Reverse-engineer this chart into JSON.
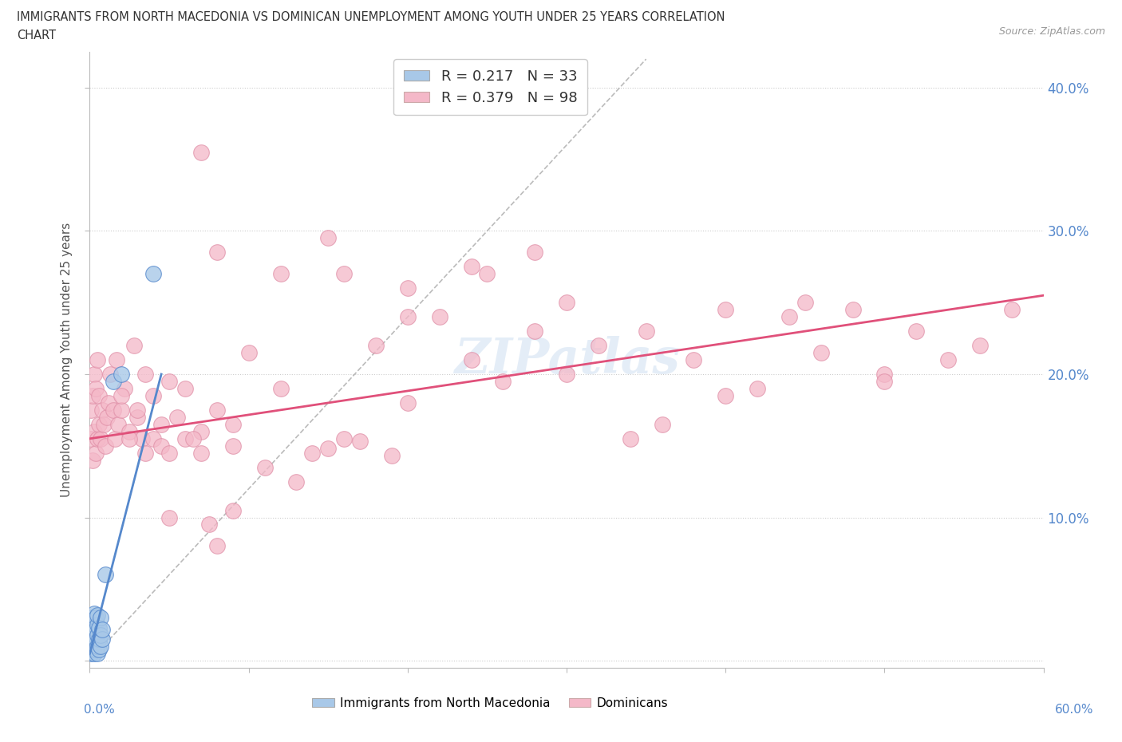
{
  "title_line1": "IMMIGRANTS FROM NORTH MACEDONIA VS DOMINICAN UNEMPLOYMENT AMONG YOUTH UNDER 25 YEARS CORRELATION",
  "title_line2": "CHART",
  "source": "Source: ZipAtlas.com",
  "ylabel": "Unemployment Among Youth under 25 years",
  "ytick_vals": [
    0.0,
    0.1,
    0.2,
    0.3,
    0.4
  ],
  "ytick_labels": [
    "",
    "10.0%",
    "20.0%",
    "30.0%",
    "40.0%"
  ],
  "xlim": [
    0.0,
    0.6
  ],
  "ylim": [
    -0.005,
    0.425
  ],
  "color_blue": "#a8c8e8",
  "color_blue_dark": "#5588cc",
  "color_pink": "#f4b8c8",
  "color_pink_line": "#e0507a",
  "color_blue_line": "#5588cc",
  "watermark": "ZIPatlas",
  "blue_x": [
    0.001,
    0.001,
    0.001,
    0.002,
    0.002,
    0.002,
    0.002,
    0.003,
    0.003,
    0.003,
    0.003,
    0.003,
    0.004,
    0.004,
    0.004,
    0.004,
    0.005,
    0.005,
    0.005,
    0.005,
    0.005,
    0.006,
    0.006,
    0.006,
    0.007,
    0.007,
    0.007,
    0.008,
    0.008,
    0.01,
    0.015,
    0.02,
    0.04
  ],
  "blue_y": [
    0.005,
    0.01,
    0.025,
    0.008,
    0.013,
    0.02,
    0.03,
    0.005,
    0.01,
    0.018,
    0.025,
    0.033,
    0.008,
    0.015,
    0.022,
    0.03,
    0.005,
    0.01,
    0.018,
    0.025,
    0.032,
    0.008,
    0.015,
    0.023,
    0.01,
    0.018,
    0.03,
    0.015,
    0.022,
    0.06,
    0.195,
    0.2,
    0.27
  ],
  "pink_x": [
    0.001,
    0.001,
    0.002,
    0.002,
    0.003,
    0.003,
    0.004,
    0.004,
    0.005,
    0.005,
    0.006,
    0.006,
    0.007,
    0.008,
    0.009,
    0.01,
    0.011,
    0.012,
    0.013,
    0.015,
    0.016,
    0.017,
    0.018,
    0.02,
    0.022,
    0.025,
    0.028,
    0.03,
    0.033,
    0.035,
    0.04,
    0.045,
    0.05,
    0.06,
    0.07,
    0.08,
    0.09,
    0.1,
    0.12,
    0.14,
    0.16,
    0.18,
    0.2,
    0.22,
    0.24,
    0.26,
    0.28,
    0.3,
    0.32,
    0.34,
    0.36,
    0.38,
    0.4,
    0.42,
    0.44,
    0.46,
    0.48,
    0.5,
    0.52,
    0.54,
    0.56,
    0.58,
    0.15,
    0.2,
    0.25,
    0.3,
    0.35,
    0.4,
    0.45,
    0.5,
    0.08,
    0.12,
    0.16,
    0.2,
    0.24,
    0.28,
    0.05,
    0.07,
    0.09,
    0.11,
    0.13,
    0.15,
    0.17,
    0.19,
    0.02,
    0.025,
    0.03,
    0.035,
    0.04,
    0.045,
    0.05,
    0.055,
    0.06,
    0.065,
    0.07,
    0.075,
    0.08,
    0.09
  ],
  "pink_y": [
    0.155,
    0.175,
    0.14,
    0.185,
    0.16,
    0.2,
    0.145,
    0.19,
    0.155,
    0.21,
    0.165,
    0.185,
    0.155,
    0.175,
    0.165,
    0.15,
    0.17,
    0.18,
    0.2,
    0.175,
    0.155,
    0.21,
    0.165,
    0.175,
    0.19,
    0.16,
    0.22,
    0.17,
    0.155,
    0.2,
    0.185,
    0.165,
    0.195,
    0.155,
    0.16,
    0.175,
    0.165,
    0.215,
    0.19,
    0.145,
    0.155,
    0.22,
    0.18,
    0.24,
    0.21,
    0.195,
    0.23,
    0.2,
    0.22,
    0.155,
    0.165,
    0.21,
    0.185,
    0.19,
    0.24,
    0.215,
    0.245,
    0.2,
    0.23,
    0.21,
    0.22,
    0.245,
    0.295,
    0.26,
    0.27,
    0.25,
    0.23,
    0.245,
    0.25,
    0.195,
    0.285,
    0.27,
    0.27,
    0.24,
    0.275,
    0.285,
    0.1,
    0.145,
    0.15,
    0.135,
    0.125,
    0.148,
    0.153,
    0.143,
    0.185,
    0.155,
    0.175,
    0.145,
    0.155,
    0.15,
    0.145,
    0.17,
    0.19,
    0.155,
    0.355,
    0.095,
    0.08,
    0.105
  ],
  "ref_line_x": [
    0.0,
    0.35
  ],
  "ref_line_y": [
    0.0,
    0.42
  ],
  "pink_line_x0": 0.0,
  "pink_line_x1": 0.6,
  "pink_line_y0": 0.155,
  "pink_line_y1": 0.255,
  "blue_line_x0": 0.0,
  "blue_line_x1": 0.045,
  "blue_line_y0": 0.005,
  "blue_line_y1": 0.2
}
